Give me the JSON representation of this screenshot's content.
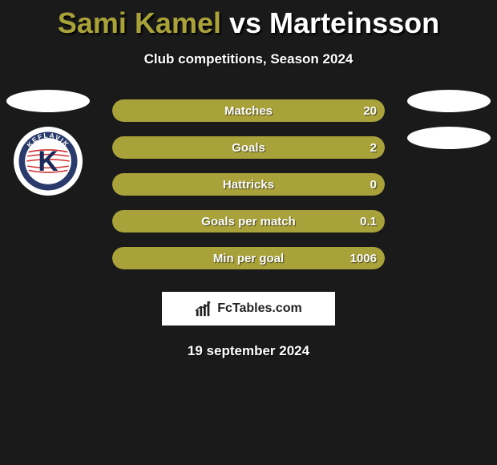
{
  "background_color": "#1a1a1a",
  "title": {
    "left_name": "Sami Kamel",
    "vs": " vs ",
    "right_name": "Marteinsson",
    "left_color": "#a9a23a",
    "right_color": "#ffffff",
    "fontsize": 36
  },
  "subtitle": "Club competitions, Season 2024",
  "bar_colors": {
    "left_fill": "#a9a23a",
    "right_fill": "#d4d4d4",
    "track": "#3a3a3a"
  },
  "stats": [
    {
      "label": "Matches",
      "left_value": "",
      "right_value": "20",
      "left_pct": 100,
      "right_pct": 0
    },
    {
      "label": "Goals",
      "left_value": "",
      "right_value": "2",
      "left_pct": 100,
      "right_pct": 0
    },
    {
      "label": "Hattricks",
      "left_value": "",
      "right_value": "0",
      "left_pct": 100,
      "right_pct": 0
    },
    {
      "label": "Goals per match",
      "left_value": "",
      "right_value": "0.1",
      "left_pct": 100,
      "right_pct": 0
    },
    {
      "label": "Min per goal",
      "left_value": "",
      "right_value": "1006",
      "left_pct": 100,
      "right_pct": 0
    }
  ],
  "club_logo": {
    "text": "KEFLAVIK",
    "outer_ring": "#2a3a6a",
    "letter_bg": "#ffffff",
    "letter_color": "#1a2a5a",
    "stripes": "#d03030"
  },
  "brand": "FcTables.com",
  "date": "19 september 2024"
}
